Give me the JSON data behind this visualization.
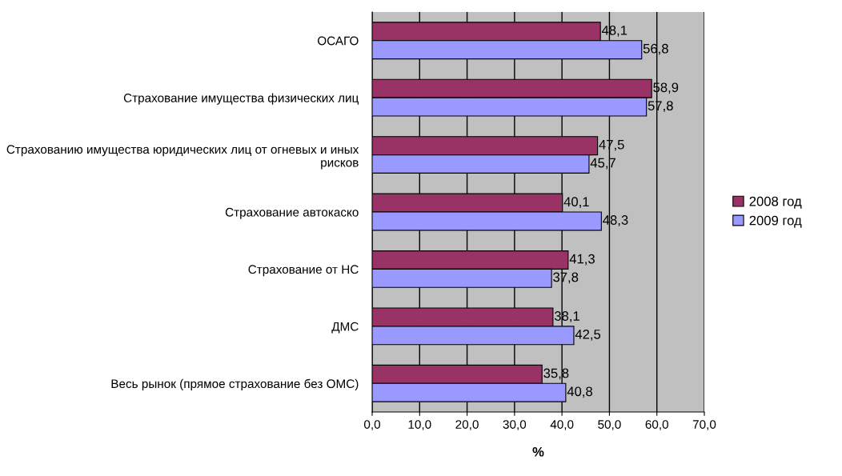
{
  "chart_data": {
    "type": "bar",
    "orientation": "horizontal",
    "xlabel": "%",
    "categories": [
      "ОСАГО",
      "Страхование имущества физических лиц",
      "Страхованию имущества юридических лиц от огневых и иных рисков",
      "Страхование автокаско",
      "Страхование от НС",
      "ДМС",
      "Весь рынок (прямое страхование без ОМС)"
    ],
    "series": [
      {
        "name": "2008 год",
        "color": "#993366",
        "values": [
          48.1,
          58.9,
          47.5,
          40.1,
          41.3,
          38.1,
          35.8
        ],
        "value_labels": [
          "48,1",
          "58,9",
          "47,5",
          "40,1",
          "41,3",
          "38,1",
          "35,8"
        ]
      },
      {
        "name": "2009 год",
        "color": "#9999ff",
        "values": [
          56.8,
          57.8,
          45.7,
          48.3,
          37.8,
          42.5,
          40.8
        ],
        "value_labels": [
          "56,8",
          "57,8",
          "45,7",
          "48,3",
          "37,8",
          "42,5",
          "40,8"
        ]
      }
    ],
    "xlim": [
      0,
      70
    ],
    "xticks": [
      {
        "value": 0,
        "label": "0,0"
      },
      {
        "value": 10,
        "label": "10,0"
      },
      {
        "value": 20,
        "label": "20,0"
      },
      {
        "value": 30,
        "label": "30,0"
      },
      {
        "value": 40,
        "label": "40,0"
      },
      {
        "value": 50,
        "label": "50,0"
      },
      {
        "value": 60,
        "label": "60,0"
      },
      {
        "value": 70,
        "label": "70,0"
      }
    ],
    "grid": "x",
    "legend": "right"
  }
}
